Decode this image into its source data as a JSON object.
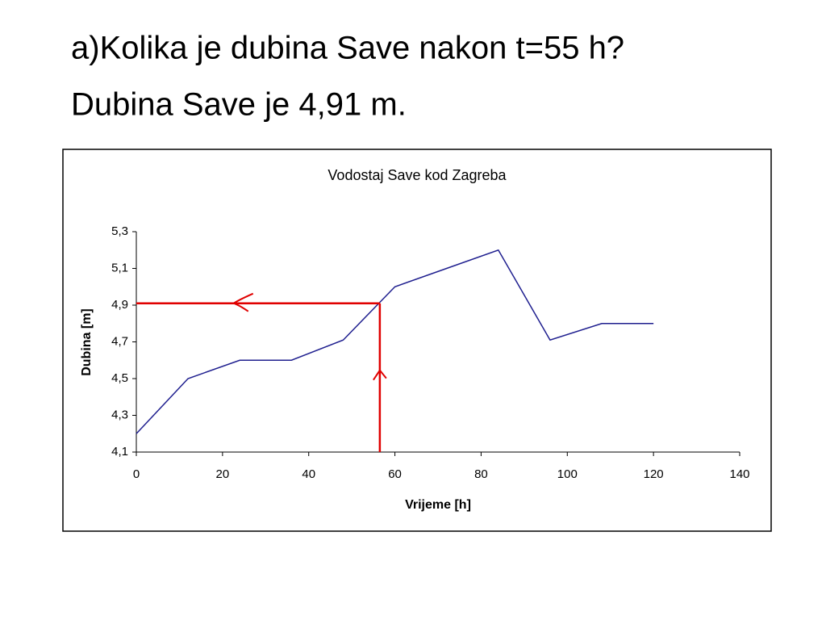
{
  "question": "a)Kolika je dubina Save nakon t=55 h?",
  "answer": "Dubina Save je 4,91 m.",
  "chart_data": {
    "type": "line",
    "title": "Vodostaj Save kod Zagreba",
    "x_label": "Vrijeme [h]",
    "y_label": "Dubina [m]",
    "x": [
      0,
      12,
      24,
      36,
      48,
      60,
      72,
      84,
      96,
      108,
      120
    ],
    "values": [
      4.2,
      4.5,
      4.6,
      4.6,
      4.71,
      5.0,
      5.1,
      5.2,
      4.71,
      4.8,
      4.8
    ],
    "color": "#1f1f8f",
    "xlim": [
      0,
      140
    ],
    "xticks": [
      0,
      20,
      40,
      60,
      80,
      100,
      120,
      140
    ],
    "ylim": [
      4.1,
      5.3
    ],
    "yticks": [
      {
        "value": 4.1,
        "label": "4,1"
      },
      {
        "value": 4.3,
        "label": "4,3"
      },
      {
        "value": 4.5,
        "label": "4,5"
      },
      {
        "value": 4.7,
        "label": "4,7"
      },
      {
        "value": 4.9,
        "label": "4,9"
      },
      {
        "value": 5.1,
        "label": "5,1"
      },
      {
        "value": 5.3,
        "label": "5,3"
      }
    ],
    "guide_x": 56.5,
    "guide_y": 4.91,
    "guide_color": "#e00000"
  }
}
